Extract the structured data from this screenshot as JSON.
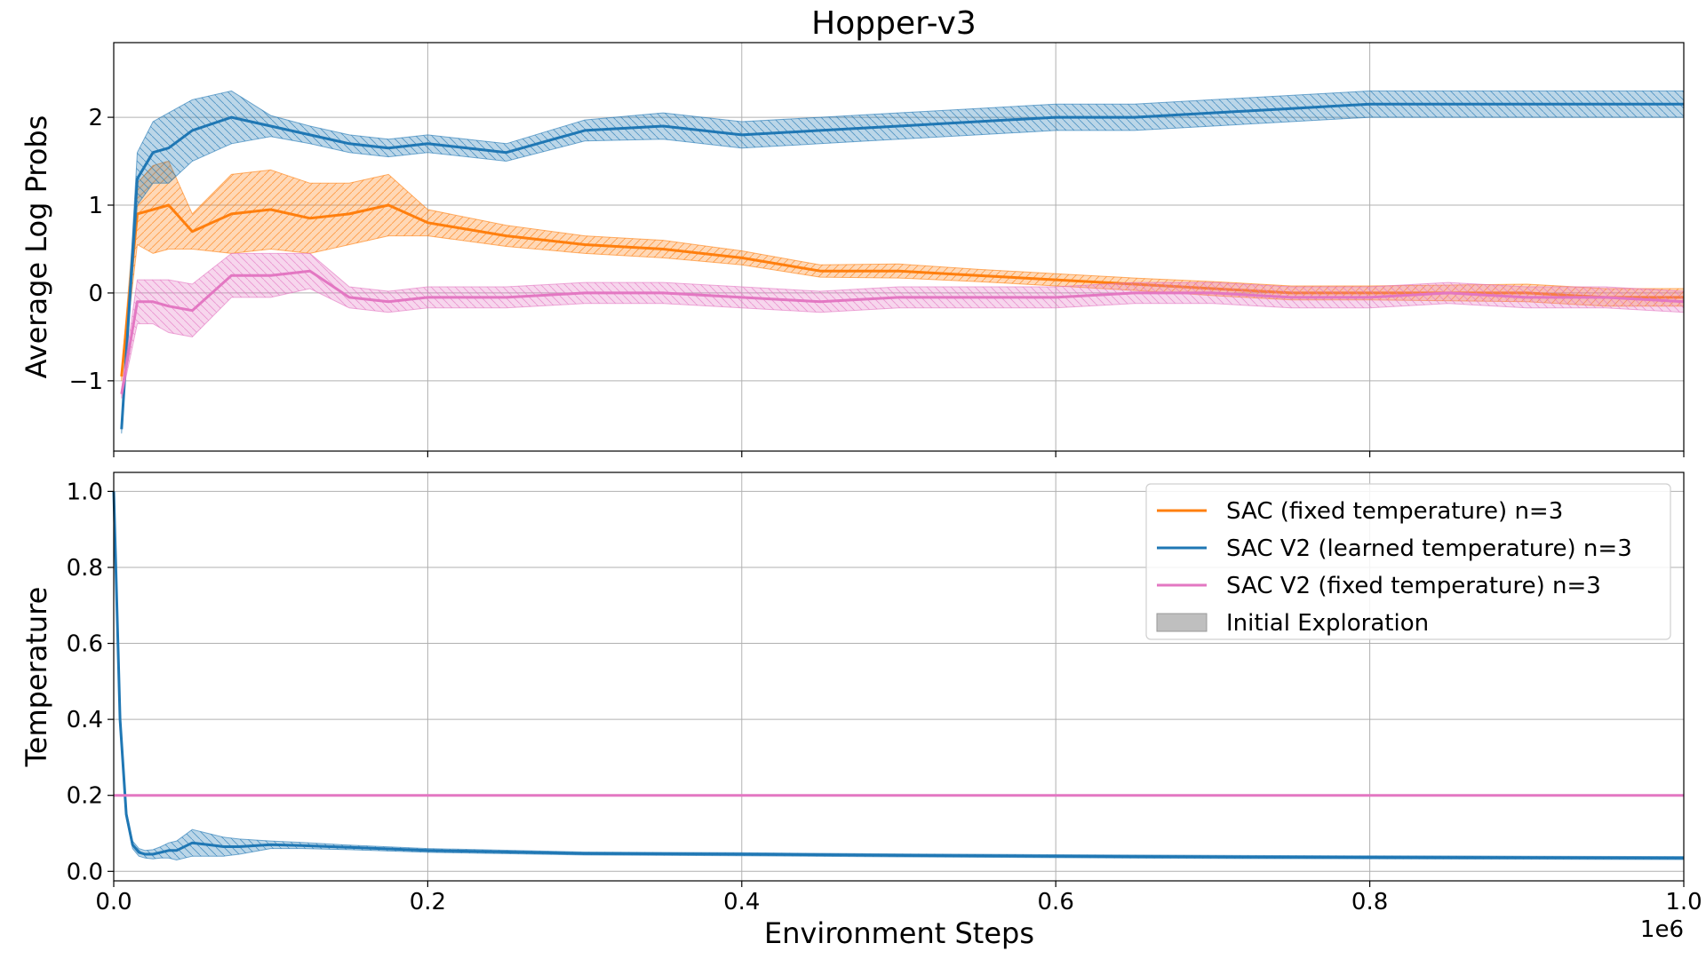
{
  "figure": {
    "title": "Hopper-v3",
    "xlabel": "Environment Steps",
    "x_offset_label": "1e6"
  },
  "colors": {
    "sac_fixed": "#ff7f0e",
    "sac_v2_learned": "#1f77b4",
    "sac_v2_fixed": "#e377c2",
    "initial_exploration": "#bfbfbf"
  },
  "legend": {
    "placement": "upper right of bottom panel",
    "entries": [
      {
        "label": "SAC (fixed temperature) n=3",
        "color": "#ff7f0e",
        "kind": "line"
      },
      {
        "label": "SAC V2 (learned temperature) n=3",
        "color": "#1f77b4",
        "kind": "line"
      },
      {
        "label": "SAC V2 (fixed temperature) n=3",
        "color": "#e377c2",
        "kind": "line"
      },
      {
        "label": "Initial Exploration",
        "color": "#bfbfbf",
        "kind": "patch"
      }
    ]
  },
  "chart_data": [
    {
      "type": "line",
      "panel": "top",
      "ylabel": "Average Log Probs",
      "xlim": [
        0,
        1000000
      ],
      "ylim": [
        -1.8,
        2.85
      ],
      "x_ticks": [
        0,
        200000,
        400000,
        600000,
        800000,
        1000000
      ],
      "y_ticks": [
        -1,
        0,
        1,
        2
      ],
      "y_tick_labels": [
        "−1",
        "0",
        "1",
        "2"
      ],
      "grid": true,
      "x": [
        5000,
        15000,
        25000,
        35000,
        50000,
        75000,
        100000,
        125000,
        150000,
        175000,
        200000,
        250000,
        300000,
        350000,
        400000,
        450000,
        500000,
        550000,
        600000,
        650000,
        700000,
        750000,
        800000,
        850000,
        900000,
        950000,
        1000000
      ],
      "series": [
        {
          "name": "SAC (fixed temperature) n=3",
          "color": "#ff7f0e",
          "mean": [
            -0.95,
            0.9,
            0.95,
            1.0,
            0.7,
            0.9,
            0.95,
            0.85,
            0.9,
            1.0,
            0.8,
            0.65,
            0.55,
            0.5,
            0.4,
            0.25,
            0.25,
            0.2,
            0.15,
            0.1,
            0.05,
            0.0,
            0.0,
            0.0,
            0.0,
            -0.05,
            -0.05
          ],
          "band": [
            0.05,
            0.35,
            0.5,
            0.5,
            0.2,
            0.45,
            0.45,
            0.4,
            0.35,
            0.35,
            0.15,
            0.12,
            0.1,
            0.1,
            0.08,
            0.07,
            0.08,
            0.07,
            0.07,
            0.07,
            0.08,
            0.08,
            0.08,
            0.09,
            0.1,
            0.1,
            0.1
          ]
        },
        {
          "name": "SAC V2 (learned temperature) n=3",
          "color": "#1f77b4",
          "mean": [
            -1.55,
            1.3,
            1.6,
            1.65,
            1.85,
            2.0,
            1.9,
            1.8,
            1.7,
            1.65,
            1.7,
            1.6,
            1.85,
            1.9,
            1.8,
            1.85,
            1.9,
            1.95,
            2.0,
            2.0,
            2.05,
            2.1,
            2.15,
            2.15,
            2.15,
            2.15,
            2.15
          ],
          "band": [
            0.05,
            0.3,
            0.35,
            0.4,
            0.35,
            0.3,
            0.12,
            0.1,
            0.1,
            0.1,
            0.1,
            0.1,
            0.12,
            0.15,
            0.15,
            0.15,
            0.15,
            0.15,
            0.15,
            0.15,
            0.15,
            0.15,
            0.15,
            0.15,
            0.15,
            0.15,
            0.15
          ]
        },
        {
          "name": "SAC V2 (fixed temperature) n=3",
          "color": "#e377c2",
          "mean": [
            -1.15,
            -0.1,
            -0.1,
            -0.15,
            -0.2,
            0.2,
            0.2,
            0.25,
            -0.05,
            -0.1,
            -0.05,
            -0.05,
            0.0,
            0.0,
            -0.05,
            -0.1,
            -0.05,
            -0.05,
            -0.05,
            0.0,
            0.0,
            -0.05,
            -0.05,
            0.0,
            -0.05,
            -0.05,
            -0.1
          ],
          "band": [
            0.05,
            0.25,
            0.25,
            0.3,
            0.3,
            0.25,
            0.25,
            0.2,
            0.12,
            0.12,
            0.12,
            0.12,
            0.12,
            0.12,
            0.12,
            0.12,
            0.12,
            0.12,
            0.12,
            0.12,
            0.12,
            0.12,
            0.12,
            0.12,
            0.12,
            0.12,
            0.12
          ]
        }
      ]
    },
    {
      "type": "line",
      "panel": "bottom",
      "ylabel": "Temperature",
      "xlabel": "Environment Steps",
      "xlim": [
        0,
        1000000
      ],
      "ylim": [
        -0.025,
        1.05
      ],
      "x_ticks": [
        0,
        200000,
        400000,
        600000,
        800000,
        1000000
      ],
      "x_tick_labels": [
        "0.0",
        "0.2",
        "0.4",
        "0.6",
        "0.8",
        "1.0"
      ],
      "y_ticks": [
        0,
        0.2,
        0.4,
        0.6,
        0.8,
        1.0
      ],
      "y_tick_labels": [
        "0.0",
        "0.2",
        "0.4",
        "0.6",
        "0.8",
        "1.0"
      ],
      "grid": true,
      "series": [
        {
          "name": "SAC V2 (learned temperature) n=3",
          "color": "#1f77b4",
          "x": [
            0,
            4000,
            8000,
            12000,
            16000,
            20000,
            25000,
            30000,
            35000,
            40000,
            50000,
            60000,
            70000,
            80000,
            100000,
            120000,
            150000,
            200000,
            300000,
            400000,
            500000,
            600000,
            700000,
            800000,
            900000,
            1000000
          ],
          "mean": [
            1.0,
            0.4,
            0.15,
            0.07,
            0.05,
            0.045,
            0.045,
            0.05,
            0.055,
            0.055,
            0.075,
            0.07,
            0.065,
            0.065,
            0.07,
            0.068,
            0.063,
            0.055,
            0.047,
            0.045,
            0.042,
            0.04,
            0.038,
            0.037,
            0.036,
            0.035
          ],
          "band": [
            0.0,
            0.01,
            0.01,
            0.01,
            0.01,
            0.01,
            0.012,
            0.015,
            0.02,
            0.025,
            0.035,
            0.03,
            0.025,
            0.02,
            0.01,
            0.008,
            0.006,
            0.005,
            0.004,
            0.004,
            0.004,
            0.004,
            0.004,
            0.004,
            0.004,
            0.004
          ]
        },
        {
          "name": "SAC V2 (fixed temperature) n=3",
          "color": "#e377c2",
          "x": [
            0,
            1000000
          ],
          "mean": [
            0.2,
            0.2
          ],
          "band": [
            0,
            0
          ]
        }
      ]
    }
  ]
}
